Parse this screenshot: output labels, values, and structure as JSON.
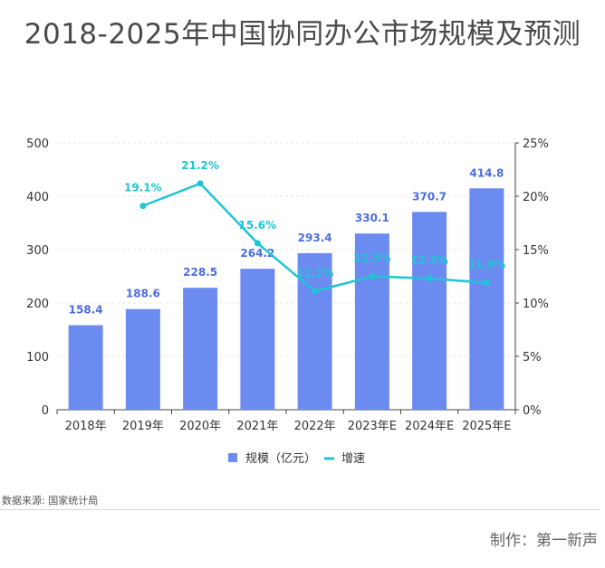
{
  "title": "2018-2025年中国协同办公市场规模及预测",
  "source": "数据来源: 国家统计局",
  "credit": "制作：第一新声",
  "colors": {
    "bar": "#6c8bf0",
    "bar_label": "#4a6ee0",
    "line": "#1fc5d2",
    "axis": "#333333",
    "grid": "#e6e6e6"
  },
  "chart_data": {
    "type": "bar",
    "categories": [
      "2018年",
      "2019年",
      "2020年",
      "2021年",
      "2022年",
      "2023年E",
      "2024年E",
      "2025年E"
    ],
    "series": [
      {
        "name": "规模（亿元）",
        "type": "bar",
        "axis": "left",
        "values": [
          158.4,
          188.6,
          228.5,
          264.2,
          293.4,
          330.1,
          370.7,
          414.8
        ],
        "labels": [
          "158.4",
          "188.6",
          "228.5",
          "264.2",
          "293.4",
          "330.1",
          "370.7",
          "414.8"
        ]
      },
      {
        "name": "增速",
        "type": "line",
        "axis": "right",
        "values": [
          null,
          19.1,
          21.2,
          15.6,
          11.1,
          12.5,
          12.3,
          11.9
        ],
        "labels": [
          "",
          "19.1%",
          "21.2%",
          "15.6%",
          "11.1%",
          "12.5%",
          "12.3%",
          "11.9%"
        ]
      }
    ],
    "y_left": {
      "min": 0,
      "max": 500,
      "ticks": [
        "0",
        "100",
        "200",
        "300",
        "400",
        "500"
      ]
    },
    "y_right": {
      "min": 0,
      "max": 25,
      "ticks": [
        "0%",
        "5%",
        "10%",
        "15%",
        "20%",
        "25%"
      ]
    },
    "grid": true,
    "legend_position": "bottom"
  }
}
